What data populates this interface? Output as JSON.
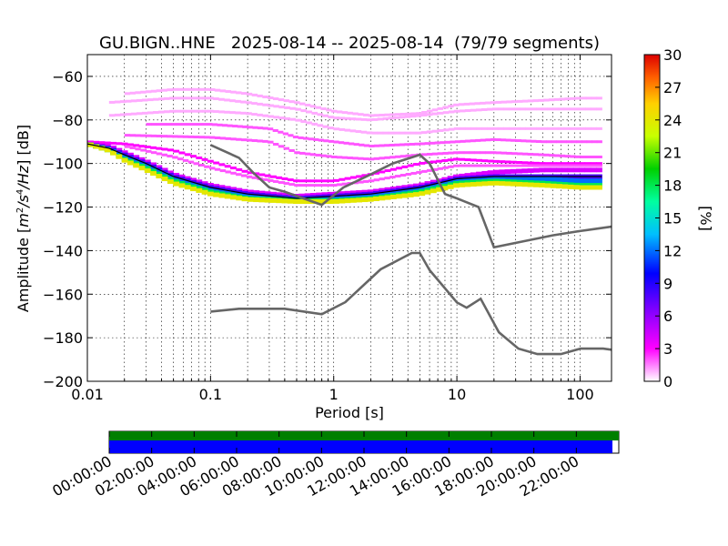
{
  "chart_data": {
    "type": "heatmap",
    "title": "GU.BIGN..HNE   2025-08-14 -- 2025-08-14  (79/79 segments)",
    "xlabel": "Period [s]",
    "ylabel_prefix": "Amplitude [",
    "ylabel_suffix": "] [dB]",
    "ylabel_units_parts": [
      "m",
      "2",
      "/s",
      "4",
      "/Hz"
    ],
    "xscale": "log",
    "xlim": [
      0.01,
      180
    ],
    "ylim": [
      -200,
      -50
    ],
    "grid": true,
    "x_ticks": [
      0.01,
      0.1,
      1,
      10,
      100
    ],
    "x_tick_labels": [
      "0.01",
      "0.1",
      "1",
      "10",
      "100"
    ],
    "y_ticks": [
      -200,
      -180,
      -160,
      -140,
      -120,
      -100,
      -80,
      -60
    ],
    "y_tick_labels": [
      "−200",
      "−180",
      "−160",
      "−140",
      "−120",
      "−100",
      "−80",
      "−60"
    ],
    "colorbar": {
      "label": "[%]",
      "range": [
        0,
        30
      ],
      "ticks": [
        0,
        3,
        6,
        9,
        12,
        15,
        18,
        21,
        24,
        27,
        30
      ],
      "tick_labels": [
        "0",
        "3",
        "6",
        "9",
        "12",
        "15",
        "18",
        "21",
        "24",
        "27",
        "30"
      ]
    },
    "noise_models": [
      {
        "model": "NHNM",
        "color": "#666666",
        "points": [
          [
            0.1,
            -91.5
          ],
          [
            0.17,
            -97.4
          ],
          [
            0.22,
            -104
          ],
          [
            0.3,
            -111
          ],
          [
            0.4,
            -113
          ],
          [
            0.8,
            -119
          ],
          [
            1.2,
            -111
          ],
          [
            2,
            -105
          ],
          [
            3,
            -100
          ],
          [
            5,
            -96
          ],
          [
            6,
            -100
          ],
          [
            8,
            -114
          ],
          [
            10,
            -116
          ],
          [
            15,
            -120
          ],
          [
            20,
            -138.5
          ],
          [
            60,
            -133
          ],
          [
            100,
            -131
          ],
          [
            180,
            -129
          ]
        ]
      },
      {
        "model": "NLNM",
        "color": "#666666",
        "points": [
          [
            0.1,
            -168
          ],
          [
            0.17,
            -166.7
          ],
          [
            0.4,
            -166.7
          ],
          [
            0.8,
            -169.2
          ],
          [
            1.24,
            -163.7
          ],
          [
            2.4,
            -148.6
          ],
          [
            4.3,
            -141.1
          ],
          [
            5,
            -141.1
          ],
          [
            6,
            -149
          ],
          [
            10,
            -163.8
          ],
          [
            12,
            -166.2
          ],
          [
            15.6,
            -162.1
          ],
          [
            21.9,
            -177.5
          ],
          [
            31.6,
            -185
          ],
          [
            45,
            -187.5
          ],
          [
            70,
            -187.5
          ],
          [
            101,
            -185
          ],
          [
            154,
            -185
          ],
          [
            180,
            -185.5
          ]
        ]
      }
    ],
    "bands": [
      {
        "level": 4,
        "points": [
          [
            0.01,
            -91
          ],
          [
            0.015,
            -92
          ],
          [
            0.02,
            -95
          ],
          [
            0.03,
            -99
          ],
          [
            0.05,
            -105
          ],
          [
            0.1,
            -110
          ],
          [
            0.2,
            -113
          ],
          [
            0.5,
            -115
          ],
          [
            1,
            -114
          ],
          [
            2,
            -113
          ],
          [
            5,
            -110
          ],
          [
            10,
            -106
          ],
          [
            20,
            -104
          ],
          [
            50,
            -103
          ],
          [
            100,
            -103
          ],
          [
            150,
            -103
          ]
        ]
      },
      {
        "level": 8,
        "points": [
          [
            0.01,
            -91
          ],
          [
            0.015,
            -93
          ],
          [
            0.02,
            -96
          ],
          [
            0.03,
            -100
          ],
          [
            0.05,
            -106
          ],
          [
            0.1,
            -111
          ],
          [
            0.2,
            -114
          ],
          [
            0.5,
            -116
          ],
          [
            1,
            -115
          ],
          [
            2,
            -114
          ],
          [
            5,
            -111
          ],
          [
            10,
            -107
          ],
          [
            20,
            -106
          ],
          [
            50,
            -106
          ],
          [
            100,
            -106
          ],
          [
            150,
            -106
          ]
        ]
      },
      {
        "level": 12,
        "points": [
          [
            0.01,
            -91
          ],
          [
            0.015,
            -93.5
          ],
          [
            0.02,
            -97
          ],
          [
            0.03,
            -101
          ],
          [
            0.05,
            -107
          ],
          [
            0.1,
            -112
          ],
          [
            0.2,
            -115
          ],
          [
            0.5,
            -116.5
          ],
          [
            1,
            -116
          ],
          [
            2,
            -115
          ],
          [
            5,
            -112
          ],
          [
            10,
            -108
          ],
          [
            20,
            -107
          ],
          [
            50,
            -107
          ],
          [
            100,
            -108
          ],
          [
            150,
            -108
          ]
        ]
      },
      {
        "level": 18,
        "points": [
          [
            0.01,
            -91
          ],
          [
            0.015,
            -94
          ],
          [
            0.02,
            -98
          ],
          [
            0.03,
            -102
          ],
          [
            0.05,
            -108
          ],
          [
            0.1,
            -113
          ],
          [
            0.2,
            -116
          ],
          [
            0.5,
            -117
          ],
          [
            1,
            -117
          ],
          [
            2,
            -116
          ],
          [
            5,
            -113
          ],
          [
            10,
            -109
          ],
          [
            20,
            -108
          ],
          [
            50,
            -109
          ],
          [
            100,
            -110
          ],
          [
            150,
            -110
          ]
        ]
      },
      {
        "level": 24,
        "points": [
          [
            0.01,
            -91
          ],
          [
            0.015,
            -94
          ],
          [
            0.02,
            -98.5
          ],
          [
            0.03,
            -103
          ],
          [
            0.05,
            -109
          ],
          [
            0.1,
            -114
          ],
          [
            0.2,
            -116.5
          ],
          [
            0.5,
            -117.5
          ],
          [
            1,
            -117.5
          ],
          [
            2,
            -116.5
          ],
          [
            5,
            -114
          ],
          [
            10,
            -110
          ],
          [
            20,
            -109
          ],
          [
            50,
            -110
          ],
          [
            100,
            -111
          ],
          [
            150,
            -111
          ]
        ]
      }
    ],
    "scattered_traces": [
      {
        "level": 1,
        "points": [
          [
            0.02,
            -68
          ],
          [
            0.05,
            -66
          ],
          [
            0.1,
            -66
          ],
          [
            0.2,
            -68
          ],
          [
            0.5,
            -72
          ],
          [
            1,
            -76
          ],
          [
            2,
            -78
          ],
          [
            5,
            -77
          ],
          [
            10,
            -73
          ],
          [
            20,
            -72
          ],
          [
            50,
            -71
          ],
          [
            100,
            -70
          ],
          [
            150,
            -70
          ]
        ]
      },
      {
        "level": 1,
        "points": [
          [
            0.015,
            -72
          ],
          [
            0.05,
            -70
          ],
          [
            0.1,
            -70
          ],
          [
            0.2,
            -72
          ],
          [
            0.5,
            -75
          ],
          [
            1,
            -79
          ],
          [
            2,
            -80
          ],
          [
            5,
            -78
          ],
          [
            10,
            -76
          ],
          [
            20,
            -75
          ],
          [
            50,
            -75
          ],
          [
            100,
            -75
          ],
          [
            150,
            -75
          ]
        ]
      },
      {
        "level": 1,
        "points": [
          [
            0.015,
            -78
          ],
          [
            0.05,
            -76
          ],
          [
            0.1,
            -76
          ],
          [
            0.2,
            -77
          ],
          [
            0.5,
            -80
          ],
          [
            1,
            -84
          ],
          [
            2,
            -86
          ],
          [
            5,
            -86
          ],
          [
            10,
            -84
          ],
          [
            20,
            -84
          ],
          [
            50,
            -84
          ],
          [
            100,
            -84
          ],
          [
            150,
            -84
          ]
        ]
      },
      {
        "level": 2,
        "points": [
          [
            0.03,
            -82
          ],
          [
            0.1,
            -82
          ],
          [
            0.3,
            -84
          ],
          [
            0.5,
            -88
          ],
          [
            1,
            -90
          ],
          [
            2,
            -92
          ],
          [
            5,
            -91
          ],
          [
            10,
            -90
          ],
          [
            20,
            -89
          ],
          [
            50,
            -90
          ],
          [
            100,
            -90
          ],
          [
            150,
            -90
          ]
        ]
      },
      {
        "level": 2,
        "points": [
          [
            0.02,
            -87
          ],
          [
            0.1,
            -88
          ],
          [
            0.3,
            -90
          ],
          [
            0.5,
            -95
          ],
          [
            1,
            -97
          ],
          [
            2,
            -98
          ],
          [
            5,
            -96
          ],
          [
            10,
            -95
          ],
          [
            20,
            -95
          ],
          [
            50,
            -96
          ],
          [
            100,
            -97
          ],
          [
            150,
            -97
          ]
        ]
      },
      {
        "level": 3,
        "points": [
          [
            0.01,
            -90
          ],
          [
            0.02,
            -91
          ],
          [
            0.05,
            -94
          ],
          [
            0.1,
            -99
          ],
          [
            0.2,
            -104
          ],
          [
            0.5,
            -108
          ],
          [
            1,
            -108
          ],
          [
            2,
            -105
          ],
          [
            5,
            -100
          ],
          [
            10,
            -98
          ],
          [
            20,
            -99
          ],
          [
            50,
            -100
          ],
          [
            100,
            -100
          ],
          [
            150,
            -100
          ]
        ]
      },
      {
        "level": 2,
        "points": [
          [
            0.02,
            -92
          ],
          [
            0.05,
            -97
          ],
          [
            0.1,
            -102
          ],
          [
            0.2,
            -106
          ],
          [
            0.5,
            -110
          ],
          [
            1,
            -110
          ],
          [
            2,
            -108
          ],
          [
            5,
            -104
          ],
          [
            10,
            -101
          ],
          [
            20,
            -101
          ],
          [
            50,
            -101
          ],
          [
            100,
            -101
          ],
          [
            150,
            -101
          ]
        ]
      }
    ],
    "mean_line": {
      "color": "#000000",
      "points": [
        [
          0.01,
          -91
        ],
        [
          0.015,
          -93
        ],
        [
          0.02,
          -96
        ],
        [
          0.03,
          -100
        ],
        [
          0.05,
          -106
        ],
        [
          0.1,
          -111
        ],
        [
          0.2,
          -114
        ],
        [
          0.5,
          -116
        ],
        [
          1,
          -115
        ],
        [
          2,
          -114
        ],
        [
          5,
          -111
        ],
        [
          10,
          -107
        ],
        [
          20,
          -106
        ],
        [
          50,
          -106
        ],
        [
          100,
          -106
        ],
        [
          150,
          -106
        ]
      ]
    },
    "coverage": {
      "tick_labels": [
        "00:00:00",
        "02:00:00",
        "04:00:00",
        "06:00:00",
        "08:00:00",
        "10:00:00",
        "12:00:00",
        "14:00:00",
        "16:00:00",
        "18:00:00",
        "20:00:00",
        "22:00:00"
      ],
      "range_hours": [
        0,
        24
      ],
      "data_until_hours": 23.7,
      "data_color": "#0000ff",
      "processed_color": "#007f00"
    }
  }
}
